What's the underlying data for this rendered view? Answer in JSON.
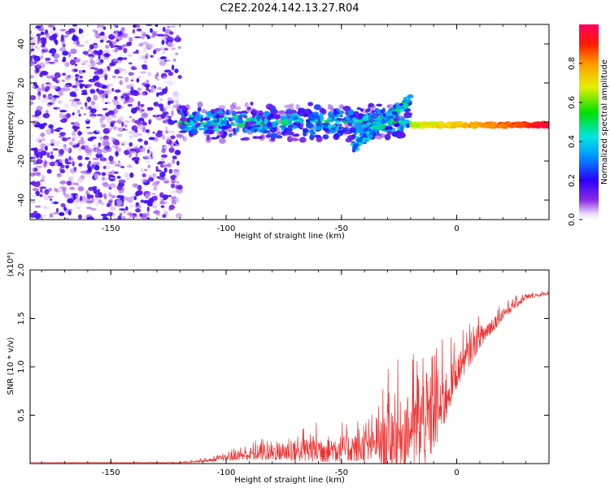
{
  "title": "C2E2.2024.142.13.27.R04",
  "chart_data": [
    {
      "id": "spectrogram",
      "type": "heatmap",
      "xlabel": "Height of straight line (km)",
      "ylabel": "Frequency (Hz)",
      "xlim": [
        -185,
        40
      ],
      "ylim": [
        -50,
        50
      ],
      "xticks": [
        -150,
        -100,
        -50,
        0
      ],
      "yticks": [
        -40,
        -20,
        0,
        20,
        40
      ],
      "xtick_labels": [
        "-150",
        "-100",
        "-50",
        "0"
      ],
      "ytick_labels": [
        "-40",
        "-20",
        "0",
        "20",
        "40"
      ],
      "description_regions": [
        {
          "x_range": [
            -185,
            -120
          ],
          "kind": "noise",
          "amplitude": [
            0.0,
            0.2
          ]
        },
        {
          "x_range": [
            -120,
            -20
          ],
          "kind": "broad_band",
          "center_hz": 0,
          "half_width_hz": 10,
          "amplitude": [
            0.1,
            0.6
          ]
        },
        {
          "x_range": [
            -45,
            -20
          ],
          "kind": "rising_branch",
          "from_hz": -13,
          "to_hz": 12,
          "amplitude": [
            0.2,
            0.5
          ]
        },
        {
          "x_range": [
            -20,
            40
          ],
          "kind": "narrow_line",
          "center_hz": -1.5,
          "half_width_hz": 2,
          "amplitude": [
            0.6,
            0.95
          ]
        }
      ],
      "colorbar": {
        "label": "Normalized spectral amplitude",
        "range": [
          0,
          1
        ],
        "ticks": [
          0.0,
          0.2,
          0.4,
          0.6,
          0.8
        ],
        "tick_labels": [
          "0.0",
          "0.2",
          "0.4",
          "0.6",
          "0.8"
        ]
      }
    },
    {
      "id": "snr",
      "type": "line",
      "xlabel": "Height of straight line (km)",
      "ylabel": "SNR (10 * v/v)",
      "y_multiplier": "(x10⁴)",
      "xlim": [
        -185,
        40
      ],
      "ylim": [
        0,
        2.0
      ],
      "xticks": [
        -150,
        -100,
        -50,
        0
      ],
      "yticks": [
        0.5,
        1.0,
        1.5,
        2.0
      ],
      "xtick_labels": [
        "-150",
        "-100",
        "-50",
        "0"
      ],
      "ytick_labels": [
        "0.5",
        "1.0",
        "1.5",
        "2.0"
      ],
      "color": "#ee3333",
      "envelope": [
        {
          "x": -185,
          "base": 0.01,
          "spread": 0.0
        },
        {
          "x": -120,
          "base": 0.01,
          "spread": 0.01
        },
        {
          "x": -105,
          "base": 0.04,
          "spread": 0.06
        },
        {
          "x": -95,
          "base": 0.08,
          "spread": 0.15
        },
        {
          "x": -80,
          "base": 0.12,
          "spread": 0.28
        },
        {
          "x": -60,
          "base": 0.15,
          "spread": 0.45
        },
        {
          "x": -45,
          "base": 0.16,
          "spread": 0.45
        },
        {
          "x": -35,
          "base": 0.18,
          "spread": 0.55
        },
        {
          "x": -30,
          "base": 0.25,
          "spread": 1.05
        },
        {
          "x": -20,
          "base": 0.35,
          "spread": 1.2
        },
        {
          "x": -13,
          "base": 0.45,
          "spread": 1.55
        },
        {
          "x": -7,
          "base": 0.6,
          "spread": 1.0
        },
        {
          "x": 0,
          "base": 0.95,
          "spread": 0.55
        },
        {
          "x": 10,
          "base": 1.3,
          "spread": 0.35
        },
        {
          "x": 20,
          "base": 1.55,
          "spread": 0.2
        },
        {
          "x": 30,
          "base": 1.72,
          "spread": 0.08
        },
        {
          "x": 40,
          "base": 1.76,
          "spread": 0.05
        }
      ]
    }
  ]
}
